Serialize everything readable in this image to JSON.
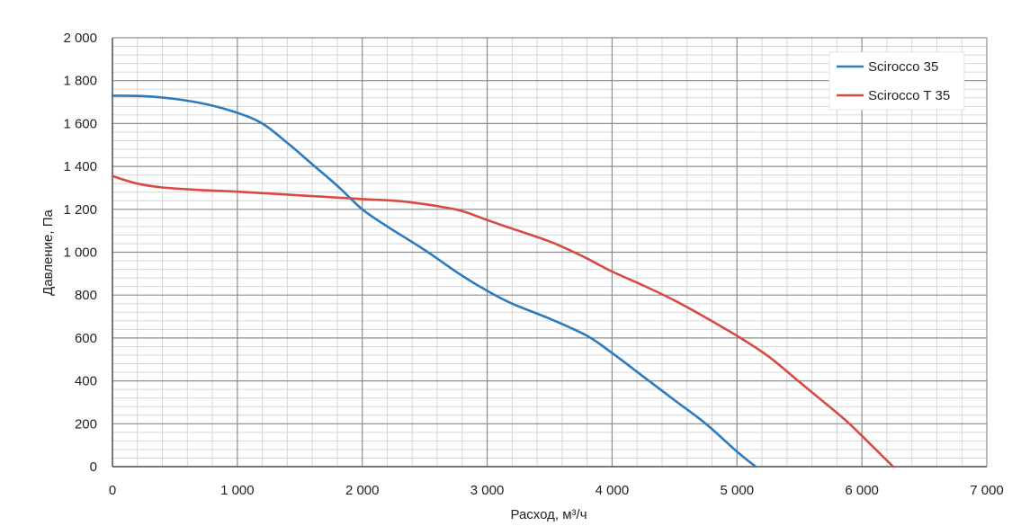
{
  "chart_data": {
    "type": "line",
    "title": "",
    "xlabel": "Расход, м³/ч",
    "ylabel": "Давление, Па",
    "xlim": [
      0,
      7000
    ],
    "ylim": [
      0,
      2000
    ],
    "x_ticks": [
      0,
      1000,
      2000,
      3000,
      4000,
      5000,
      6000,
      7000
    ],
    "x_tick_labels": [
      "0",
      "1 000",
      "2 000",
      "3 000",
      "4 000",
      "5 000",
      "6 000",
      "7 000"
    ],
    "y_ticks": [
      0,
      200,
      400,
      600,
      800,
      1000,
      1200,
      1400,
      1600,
      1800,
      2000
    ],
    "y_tick_labels": [
      "0",
      "200",
      "400",
      "600",
      "800",
      "1 000",
      "1 200",
      "1 400",
      "1 600",
      "1 800",
      "2 000"
    ],
    "grid": true,
    "legend_position": "top-right",
    "series": [
      {
        "name": "Scirocco 35",
        "color": "#2b7bbd",
        "points": [
          [
            0,
            1730
          ],
          [
            250,
            1728
          ],
          [
            500,
            1715
          ],
          [
            750,
            1690
          ],
          [
            1000,
            1650
          ],
          [
            1200,
            1600
          ],
          [
            1400,
            1510
          ],
          [
            1600,
            1410
          ],
          [
            1800,
            1310
          ],
          [
            2000,
            1200
          ],
          [
            2200,
            1120
          ],
          [
            2500,
            1010
          ],
          [
            2800,
            890
          ],
          [
            3000,
            820
          ],
          [
            3200,
            760
          ],
          [
            3500,
            690
          ],
          [
            3800,
            610
          ],
          [
            4000,
            530
          ],
          [
            4250,
            420
          ],
          [
            4500,
            310
          ],
          [
            4750,
            200
          ],
          [
            5000,
            70
          ],
          [
            5150,
            0
          ]
        ]
      },
      {
        "name": "Scirocco T 35",
        "color": "#d64b43",
        "points": [
          [
            0,
            1355
          ],
          [
            200,
            1320
          ],
          [
            400,
            1302
          ],
          [
            700,
            1290
          ],
          [
            1000,
            1282
          ],
          [
            1500,
            1265
          ],
          [
            2000,
            1248
          ],
          [
            2300,
            1238
          ],
          [
            2600,
            1215
          ],
          [
            2800,
            1192
          ],
          [
            3000,
            1150
          ],
          [
            3200,
            1110
          ],
          [
            3500,
            1050
          ],
          [
            3750,
            985
          ],
          [
            4000,
            910
          ],
          [
            4250,
            845
          ],
          [
            4500,
            775
          ],
          [
            4750,
            695
          ],
          [
            5000,
            610
          ],
          [
            5250,
            515
          ],
          [
            5500,
            395
          ],
          [
            5750,
            275
          ],
          [
            5900,
            200
          ],
          [
            6050,
            115
          ],
          [
            6250,
            0
          ]
        ]
      }
    ]
  }
}
